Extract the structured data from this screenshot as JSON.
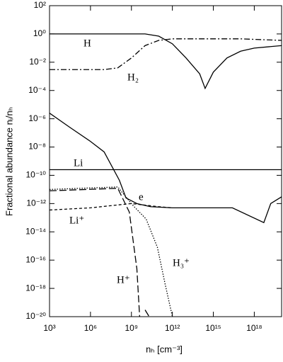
{
  "chart_data": {
    "type": "line",
    "xlabel": "nₕ [cm⁻³]",
    "ylabel": "Fractional abundance nᵢ/nₕ",
    "xscale": "log",
    "yscale": "log",
    "xlim": [
      1000.0,
      1e+20
    ],
    "ylim": [
      1e-20,
      100.0
    ],
    "xticks": [
      {
        "value": 1000.0,
        "label": "10³"
      },
      {
        "value": 1000000.0,
        "label": "10⁶"
      },
      {
        "value": 1000000000.0,
        "label": "10⁹"
      },
      {
        "value": 1000000000000.0,
        "label": "10¹²"
      },
      {
        "value": 1000000000000000.0,
        "label": "10¹⁵"
      },
      {
        "value": 1e+18,
        "label": "10¹⁸"
      }
    ],
    "yticks": [
      {
        "value": 100.0,
        "label": "10²"
      },
      {
        "value": 1,
        "label": "10⁰"
      },
      {
        "value": 0.01,
        "label": "10⁻²"
      },
      {
        "value": 0.0001,
        "label": "10⁻⁴"
      },
      {
        "value": 1e-06,
        "label": "10⁻⁶"
      },
      {
        "value": 1e-08,
        "label": "10⁻⁸"
      },
      {
        "value": 1e-10,
        "label": "10⁻¹⁰"
      },
      {
        "value": 1e-12,
        "label": "10⁻¹²"
      },
      {
        "value": 1e-14,
        "label": "10⁻¹⁴"
      },
      {
        "value": 1e-16,
        "label": "10⁻¹⁶"
      },
      {
        "value": 1e-18,
        "label": "10⁻¹⁸"
      },
      {
        "value": 1e-20,
        "label": "10⁻²⁰"
      }
    ],
    "series": [
      {
        "name": "H",
        "color": "#000",
        "dash": "none",
        "x": [
          1000.0,
          10000000000.0,
          100000000000.0,
          1000000000000.0,
          10000000000000.0,
          100000000000000.0,
          250000000000000.0,
          1000000000000000.0,
          1e+16,
          1e+17,
          1e+18,
          1e+20
        ],
        "values": [
          1,
          1,
          0.7,
          0.2,
          0.02,
          0.0015,
          0.00014,
          0.002,
          0.02,
          0.06,
          0.1,
          0.15
        ]
      },
      {
        "name": "H₂",
        "color": "#000",
        "dash": "8 3 2 3",
        "x": [
          1000.0,
          10000000.0,
          100000000.0,
          1000000000.0,
          10000000000.0,
          100000000000.0,
          1000000000000.0,
          1e+17,
          1e+20
        ],
        "values": [
          0.003,
          0.003,
          0.004,
          0.02,
          0.15,
          0.35,
          0.45,
          0.45,
          0.35
        ]
      },
      {
        "name": "Li",
        "color": "#000",
        "dash": "none",
        "x": [
          1000.0,
          1e+20
        ],
        "values": [
          2.5e-10,
          2.5e-10
        ]
      },
      {
        "name": "e",
        "color": "#000",
        "dash": "none",
        "x": [
          1000.0,
          30000.0,
          1000000.0,
          10000000.0,
          130000000.0,
          400000000.0,
          2500000000.0,
          25000000000.0,
          1000000000000.0,
          2.5e+16,
          5e+18,
          1.6e+19,
          1e+20
        ],
        "values": [
          2.5e-06,
          2.5e-07,
          2.5e-08,
          4.5e-09,
          4.5e-11,
          2.5e-12,
          1e-12,
          6e-13,
          5e-13,
          5e-13,
          4.5e-14,
          1e-12,
          3e-12
        ]
      },
      {
        "name": "Li⁺",
        "color": "#000",
        "dash": "4 3",
        "x": [
          1000.0,
          1000000.0,
          100000000.0,
          1000000000.0,
          100000000000.0,
          1000000000000.0
        ],
        "values": [
          3.5e-13,
          5e-13,
          8e-13,
          1e-12,
          6e-13,
          5e-13
        ]
      },
      {
        "name": "H⁺",
        "color": "#000",
        "dash": "10 4",
        "x": [
          1000.0,
          100000000.0,
          700000000.0,
          2500000000.0,
          4000000000.0,
          6000000000.0,
          10000000000.0,
          20000000000.0
        ],
        "values": [
          8e-12,
          1.2e-11,
          2.5e-13,
          2.5e-17,
          1e-20,
          null,
          3e-20,
          1e-20
        ]
      },
      {
        "name": "H₃⁺",
        "color": "#000",
        "dash": "1.5 2",
        "x": [
          1000.0,
          100000000.0,
          1200000000.0,
          12000000000.0,
          80000000000.0,
          280000000000.0,
          1000000000000.0
        ],
        "values": [
          1e-11,
          1.5e-11,
          8e-13,
          8e-14,
          8e-16,
          2.5e-18,
          1e-20
        ]
      }
    ]
  }
}
